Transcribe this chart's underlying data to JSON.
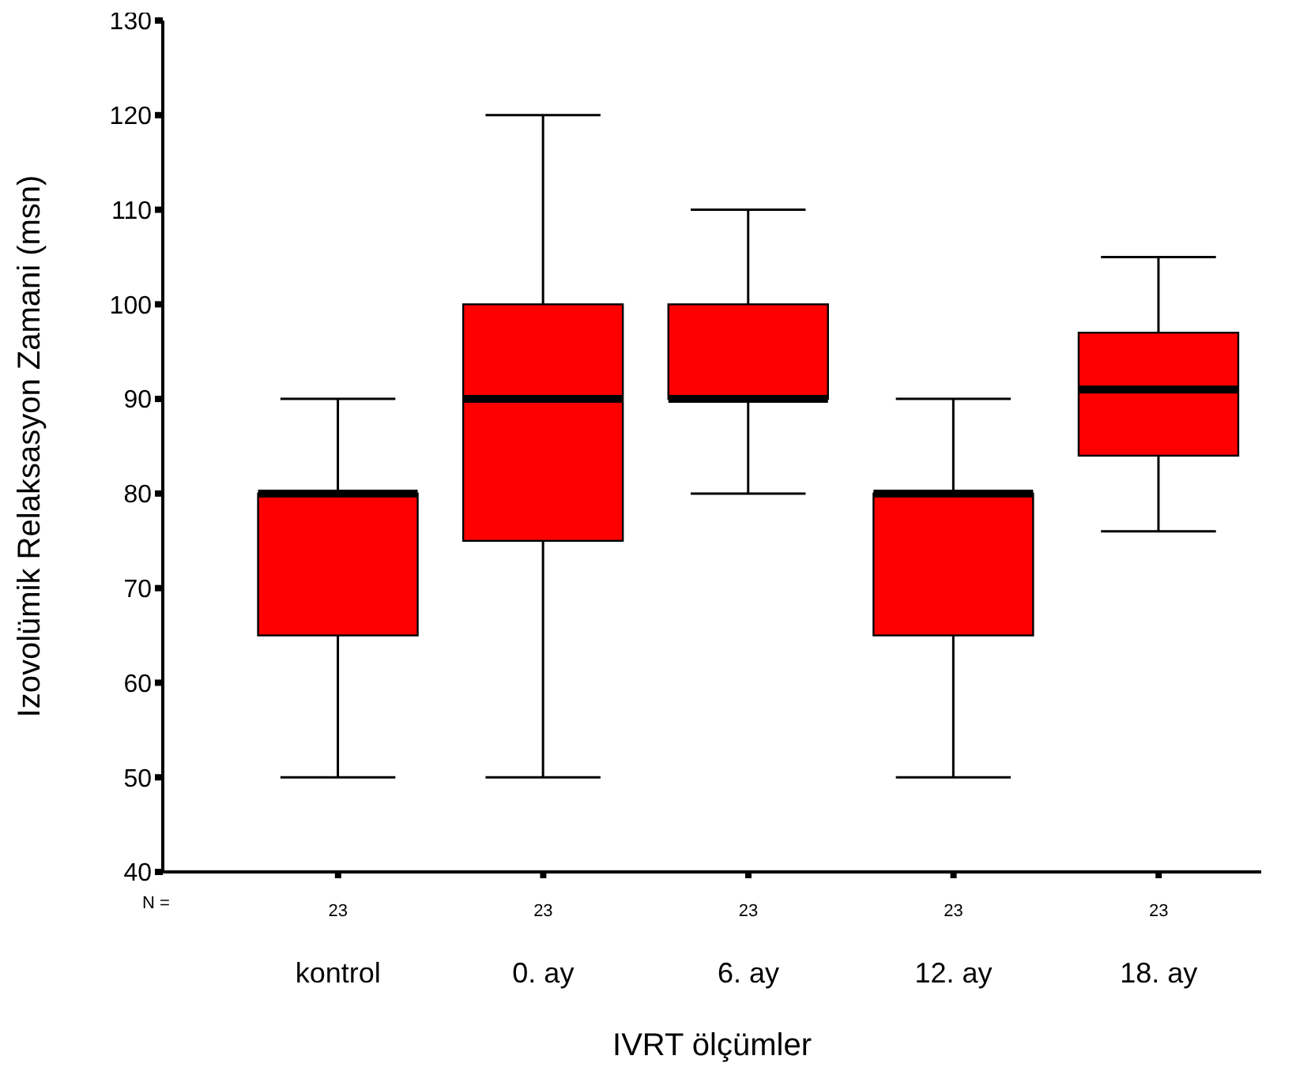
{
  "chart_data": {
    "type": "box",
    "xlabel": "IVRT ölçümler",
    "ylabel": "Izovolümik Relaksasyon Zamani (msn)",
    "categories": [
      "kontrol",
      "0. ay",
      "6. ay",
      "12. ay",
      "18. ay"
    ],
    "color": "#ff0000",
    "boxes": [
      {
        "low": 50,
        "q1": 65,
        "median": 80,
        "q3": 80,
        "high": 90
      },
      {
        "low": 50,
        "q1": 75,
        "median": 90,
        "q3": 100,
        "high": 120
      },
      {
        "low": 80,
        "q1": 90,
        "median": 90,
        "q3": 100,
        "high": 110
      },
      {
        "low": 50,
        "q1": 65,
        "median": 80,
        "q3": 80,
        "high": 90
      },
      {
        "low": 76,
        "q1": 84,
        "median": 91,
        "q3": 97,
        "high": 105
      }
    ],
    "ylim": [
      40,
      130
    ],
    "yticks": [
      40,
      50,
      60,
      70,
      80,
      90,
      100,
      110,
      120,
      130
    ],
    "grid": false,
    "annotations": [
      "N =",
      "23",
      "23",
      "23",
      "23",
      "23"
    ]
  }
}
